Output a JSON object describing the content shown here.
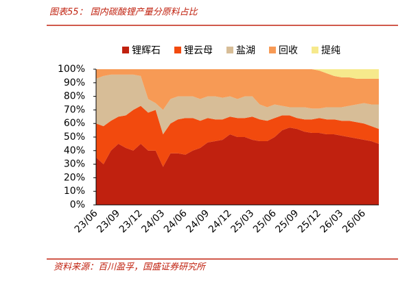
{
  "header": {
    "title": "图表55： 国内碳酸锂产量分原料占比"
  },
  "chart_data": {
    "type": "stacked_area",
    "categories": [
      "23/06",
      null,
      null,
      "23/09",
      null,
      null,
      "23/12",
      null,
      null,
      "24/03",
      null,
      null,
      "24/06",
      null,
      null,
      "24/09",
      null,
      null,
      "24/12",
      null,
      null,
      "25/03",
      null,
      null,
      "25/06",
      null,
      null,
      "25/09",
      null,
      null,
      "25/12",
      null,
      null,
      "26/03",
      null,
      null,
      "26/06",
      null,
      null
    ],
    "series": [
      {
        "name": "锂辉石",
        "color": "#c0210f",
        "values": [
          35,
          30,
          40,
          45,
          42,
          40,
          45,
          40,
          40,
          28,
          38,
          38,
          37,
          40,
          42,
          46,
          47,
          48,
          52,
          50,
          50,
          48,
          47,
          47,
          50,
          55,
          57,
          56,
          54,
          53,
          53,
          52,
          52,
          51,
          50,
          49,
          48,
          47,
          45
        ]
      },
      {
        "name": "锂云母",
        "color": "#f24a0e",
        "values": [
          25,
          28,
          22,
          20,
          24,
          30,
          28,
          28,
          30,
          24,
          22,
          25,
          27,
          24,
          20,
          18,
          16,
          15,
          13,
          14,
          14,
          17,
          16,
          15,
          14,
          11,
          9,
          8,
          9,
          10,
          11,
          11,
          11,
          11,
          12,
          12,
          12,
          11,
          11
        ]
      },
      {
        "name": "盐湖",
        "color": "#d7bd97",
        "values": [
          33,
          37,
          34,
          31,
          30,
          26,
          22,
          10,
          5,
          18,
          18,
          17,
          16,
          16,
          16,
          16,
          17,
          16,
          15,
          14,
          16,
          15,
          11,
          10,
          10,
          7,
          6,
          8,
          9,
          8,
          7,
          9,
          9,
          10,
          11,
          13,
          15,
          16,
          18
        ]
      },
      {
        "name": "回收",
        "color": "#f79a55",
        "values": [
          7,
          5,
          4,
          4,
          4,
          4,
          5,
          22,
          25,
          30,
          22,
          20,
          20,
          20,
          22,
          20,
          20,
          21,
          20,
          22,
          20,
          20,
          26,
          28,
          26,
          27,
          28,
          28,
          28,
          29,
          28,
          25,
          23,
          22,
          21,
          19,
          18,
          19,
          19
        ]
      },
      {
        "name": "提纯",
        "color": "#f6e98c",
        "values": [
          0,
          0,
          0,
          0,
          0,
          0,
          0,
          0,
          0,
          0,
          0,
          0,
          0,
          0,
          0,
          0,
          0,
          0,
          0,
          0,
          0,
          0,
          0,
          0,
          0,
          0,
          0,
          0,
          0,
          0,
          1,
          3,
          5,
          6,
          6,
          7,
          7,
          7,
          7
        ]
      }
    ],
    "ylim": [
      0,
      100
    ],
    "yticks": [
      {
        "value": 0,
        "label": "0%"
      },
      {
        "value": 10,
        "label": "10%"
      },
      {
        "value": 20,
        "label": "20%"
      },
      {
        "value": 30,
        "label": "30%"
      },
      {
        "value": 40,
        "label": "40%"
      },
      {
        "value": 50,
        "label": "50%"
      },
      {
        "value": 60,
        "label": "60%"
      },
      {
        "value": 70,
        "label": "70%"
      },
      {
        "value": 80,
        "label": "80%"
      },
      {
        "value": 90,
        "label": "90%"
      },
      {
        "value": 100,
        "label": "100%"
      }
    ]
  },
  "footer": {
    "source": "资料来源：百川盈孚，国盛证券研究所"
  }
}
